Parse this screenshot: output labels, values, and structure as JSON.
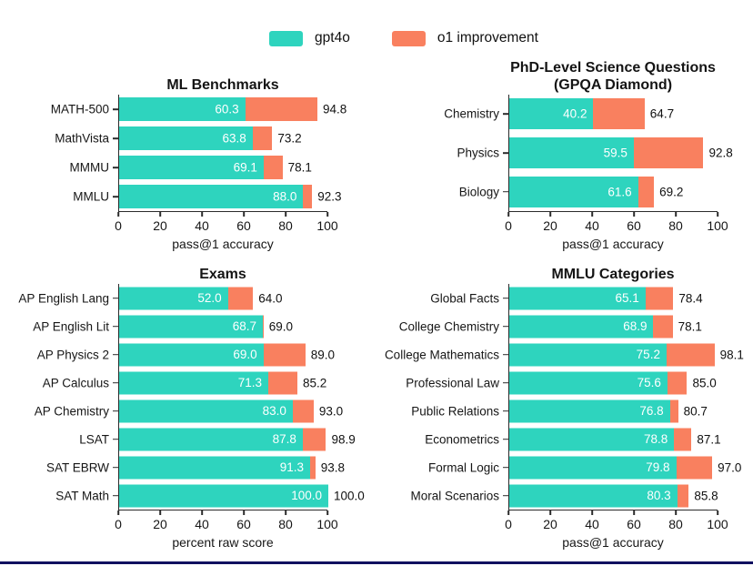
{
  "colors": {
    "gpt4o": "#2ed4be",
    "o1_improvement": "#f9805f",
    "text": "#161616",
    "bottom_bar": "#101060",
    "background": "#ffffff"
  },
  "legend": {
    "items": [
      {
        "label": "gpt4o",
        "color": "#2ed4be"
      },
      {
        "label": "o1 improvement",
        "color": "#f9805f"
      }
    ]
  },
  "chart_data": [
    {
      "type": "bar",
      "subtype": "stacked-horizontal",
      "title": "ML Benchmarks",
      "xlabel": "pass@1 accuracy",
      "xlim": [
        0,
        100
      ],
      "xticks": [
        0,
        20,
        40,
        60,
        80,
        100
      ],
      "categories": [
        "MATH-500",
        "MathVista",
        "MMMU",
        "MMLU"
      ],
      "series": [
        {
          "name": "gpt4o",
          "values": [
            60.3,
            63.8,
            69.1,
            88.0
          ]
        },
        {
          "name": "o1 improvement",
          "totals": [
            94.8,
            73.2,
            78.1,
            92.3
          ]
        }
      ]
    },
    {
      "type": "bar",
      "subtype": "stacked-horizontal",
      "title": "PhD-Level Science Questions\n(GPQA Diamond)",
      "xlabel": "pass@1 accuracy",
      "xlim": [
        0,
        100
      ],
      "xticks": [
        0,
        20,
        40,
        60,
        80,
        100
      ],
      "categories": [
        "Chemistry",
        "Physics",
        "Biology"
      ],
      "series": [
        {
          "name": "gpt4o",
          "values": [
            40.2,
            59.5,
            61.6
          ]
        },
        {
          "name": "o1 improvement",
          "totals": [
            64.7,
            92.8,
            69.2
          ]
        }
      ]
    },
    {
      "type": "bar",
      "subtype": "stacked-horizontal",
      "title": "Exams",
      "xlabel": "percent raw score",
      "xlim": [
        0,
        100
      ],
      "xticks": [
        0,
        20,
        40,
        60,
        80,
        100
      ],
      "categories": [
        "AP English Lang",
        "AP English Lit",
        "AP Physics 2",
        "AP Calculus",
        "AP Chemistry",
        "LSAT",
        "SAT EBRW",
        "SAT Math"
      ],
      "series": [
        {
          "name": "gpt4o",
          "values": [
            52.0,
            68.7,
            69.0,
            71.3,
            83.0,
            87.8,
            91.3,
            100.0
          ]
        },
        {
          "name": "o1 improvement",
          "totals": [
            64.0,
            69.0,
            89.0,
            85.2,
            93.0,
            98.9,
            93.8,
            100.0
          ]
        }
      ]
    },
    {
      "type": "bar",
      "subtype": "stacked-horizontal",
      "title": "MMLU Categories",
      "xlabel": "pass@1 accuracy",
      "xlim": [
        0,
        100
      ],
      "xticks": [
        0,
        20,
        40,
        60,
        80,
        100
      ],
      "categories": [
        "Global Facts",
        "College Chemistry",
        "College Mathematics",
        "Professional Law",
        "Public Relations",
        "Econometrics",
        "Formal Logic",
        "Moral Scenarios"
      ],
      "series": [
        {
          "name": "gpt4o",
          "values": [
            65.1,
            68.9,
            75.2,
            75.6,
            76.8,
            78.8,
            79.8,
            80.3
          ]
        },
        {
          "name": "o1 improvement",
          "totals": [
            78.4,
            78.1,
            98.1,
            85.0,
            80.7,
            87.1,
            97.0,
            85.8
          ]
        }
      ]
    }
  ]
}
